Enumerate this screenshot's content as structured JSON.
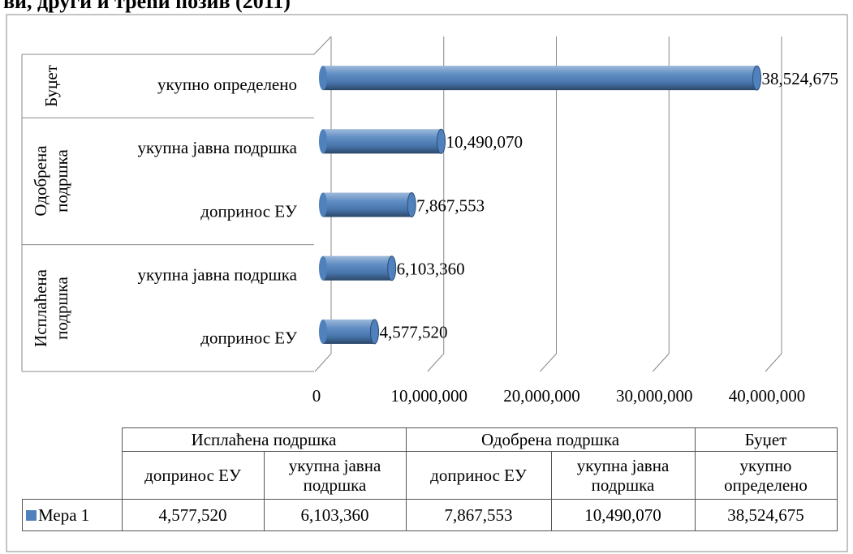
{
  "chart_data": {
    "type": "bar",
    "orientation": "horizontal",
    "title": "ви, други и трећи позив (2011)",
    "groups": [
      {
        "name": "Исплаћена подршка",
        "categories": [
          "допринос ЕУ",
          "укупна јавна подршка"
        ]
      },
      {
        "name": "Одобрена подршка",
        "categories": [
          "допринос ЕУ",
          "укупна јавна подршка"
        ]
      },
      {
        "name": "Буџет",
        "categories": [
          "укупно определено"
        ]
      }
    ],
    "series": [
      {
        "name": "Мера 1",
        "color": "#4f81bd",
        "values": [
          4577520,
          6103360,
          7867553,
          10490070,
          38524675
        ],
        "value_labels": [
          "4,577,520",
          "6,103,360",
          "7,867,553",
          "10,490,070",
          "38,524,675"
        ]
      }
    ],
    "xlim": [
      0,
      40000000
    ],
    "xticks": [
      0,
      {
        "value": 10000000,
        "label": "10,000,000"
      },
      {
        "value": 20000000,
        "label": "20,000,000"
      },
      {
        "value": 30000000,
        "label": "30,000,000"
      },
      {
        "value": 40000000,
        "label": "40,000,000"
      }
    ],
    "grid": true,
    "data_table": true
  }
}
